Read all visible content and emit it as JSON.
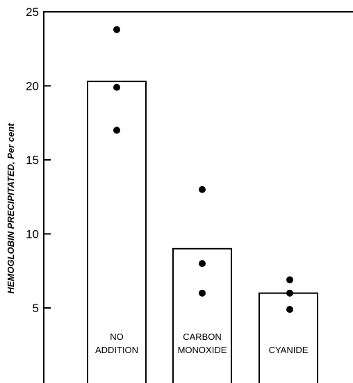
{
  "chart_data": {
    "type": "bar",
    "categories": [
      [
        "NO",
        "ADDITION"
      ],
      [
        "CARBON",
        "MONOXIDE"
      ],
      [
        "CYANIDE"
      ]
    ],
    "values": [
      20.3,
      9.0,
      6.0
    ],
    "points": [
      [
        23.8,
        19.9,
        17.0
      ],
      [
        13.0,
        8.0,
        6.0
      ],
      [
        6.9,
        6.0,
        4.9
      ]
    ],
    "title": "",
    "xlabel": "",
    "ylabel": "HEMOGLOBIN PRECIPITATED, Per cent",
    "ylim": [
      0,
      25
    ],
    "yticks": [
      5,
      10,
      15,
      20,
      25
    ],
    "ytick_labels": [
      "5",
      "10",
      "15",
      "20",
      "25"
    ],
    "grid": false,
    "colors": {
      "ink": "#000000",
      "background": "#ffffff"
    }
  }
}
